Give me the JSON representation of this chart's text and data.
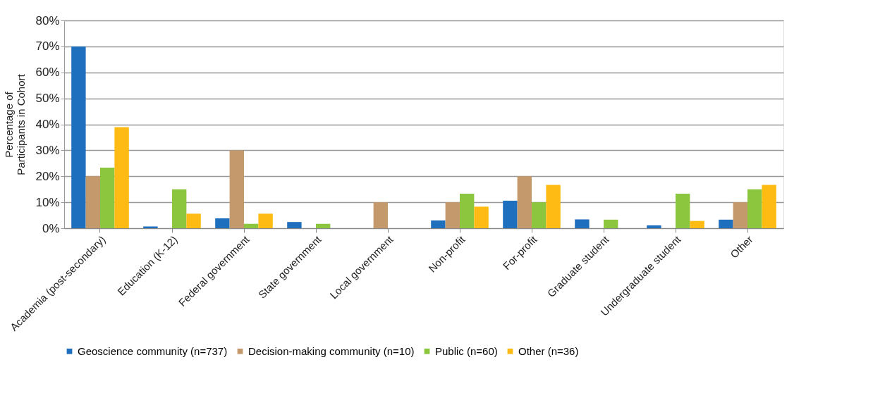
{
  "chart_data": {
    "type": "bar",
    "ylabel": "Percentage of\nParticipants in Cohort",
    "categories": [
      "Academia (post-secondary)",
      "Education (K-12)",
      "Federal government",
      "State government",
      "Local government",
      "Non-profit",
      "For-profit",
      "Graduate student",
      "Undergraduate student",
      "Other"
    ],
    "series": [
      {
        "name": "Geoscience community (n=737)",
        "color": "#1f6fbf",
        "values": [
          70,
          0.7,
          3.8,
          2.4,
          0,
          3,
          10.6,
          3.4,
          1.1,
          3.3
        ]
      },
      {
        "name": "Decision-making community (n=10)",
        "color": "#c49a6c",
        "values": [
          20,
          0,
          30,
          0,
          10,
          10,
          20,
          0,
          0,
          10
        ]
      },
      {
        "name": "Public (n=60)",
        "color": "#8cc63f",
        "values": [
          23.3,
          15,
          1.7,
          1.7,
          0,
          13.3,
          10,
          3.3,
          13.3,
          15
        ]
      },
      {
        "name": "Other (n=36)",
        "color": "#fdbb13",
        "values": [
          38.9,
          5.6,
          5.6,
          0,
          0,
          8.3,
          16.7,
          0,
          2.8,
          16.7
        ]
      }
    ],
    "ylim": [
      0,
      80
    ],
    "yticks": [
      {
        "value": 0,
        "label": "0%"
      },
      {
        "value": 10,
        "label": "10%"
      },
      {
        "value": 20,
        "label": "20%"
      },
      {
        "value": 30,
        "label": "30%"
      },
      {
        "value": 40,
        "label": "40%"
      },
      {
        "value": 50,
        "label": "50%"
      },
      {
        "value": 60,
        "label": "60%"
      },
      {
        "value": 70,
        "label": "70%"
      },
      {
        "value": 80,
        "label": "80%"
      }
    ],
    "grid": "y",
    "legend": "bottom"
  }
}
